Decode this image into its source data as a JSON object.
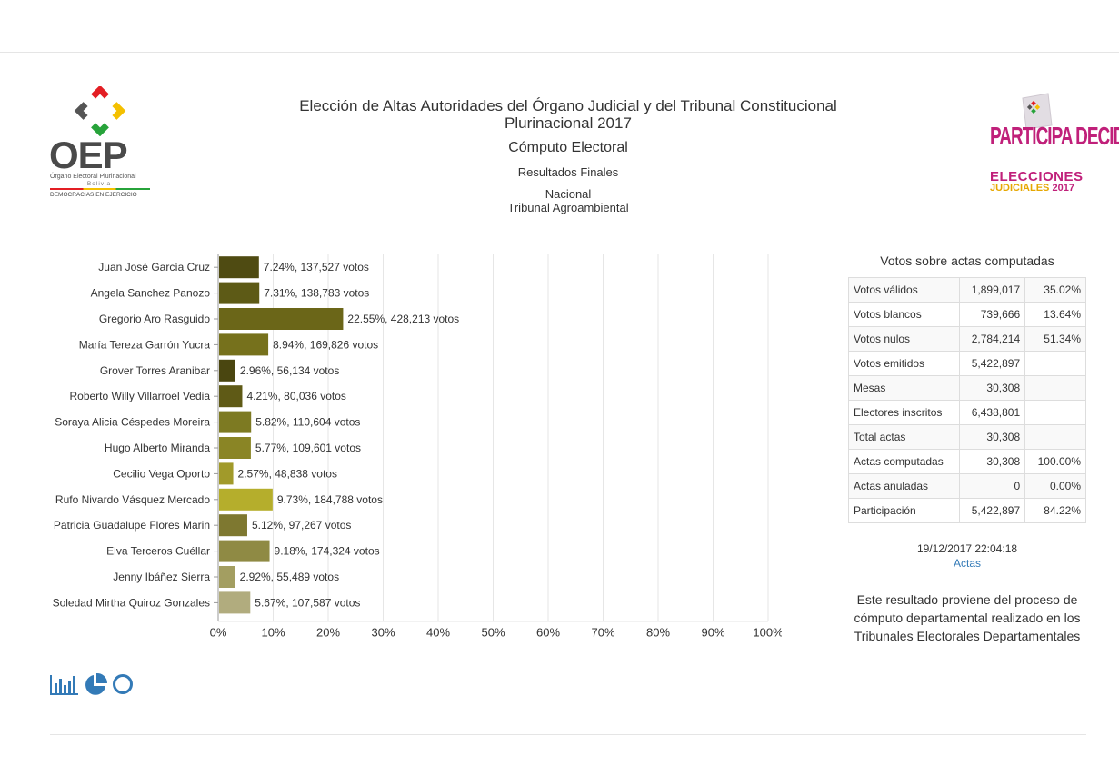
{
  "header": {
    "title": "Elección de Altas Autoridades del Órgano Judicial y del Tribunal Constitucional Plurinacional 2017",
    "subtitle": "Cómputo Electoral",
    "results": "Resultados Finales",
    "scope_line1": "Nacional",
    "scope_line2": "Tribunal Agroambiental"
  },
  "logo_left": {
    "name": "OEP",
    "subtitle": "Órgano Electoral Plurinacional",
    "country": "Bolivia",
    "slogan": "DEMOCRACIAS EN EJERCICIO"
  },
  "logo_right": {
    "main": "PARTICIPA DECIDE",
    "line1": "ELECCIONES",
    "line2": "JUDICIALES",
    "year": "2017"
  },
  "chart_data": {
    "type": "bar",
    "orientation": "horizontal",
    "categories": [
      "Juan José García Cruz",
      "Angela Sanchez Panozo",
      "Gregorio Aro Rasguido",
      "María Tereza Garrón Yucra",
      "Grover Torres Aranibar",
      "Roberto Willy Villarroel Vedia",
      "Soraya Alicia Céspedes Moreira",
      "Hugo Alberto Miranda",
      "Cecilio Vega Oporto",
      "Rufo Nivardo Vásquez Mercado",
      "Patricia Guadalupe Flores Marin",
      "Elva Terceros Cuéllar",
      "Jenny Ibáñez Sierra",
      "Soledad Mirtha Quiroz Gonzales"
    ],
    "values": [
      7.24,
      7.31,
      22.55,
      8.94,
      2.96,
      4.21,
      5.82,
      5.77,
      2.57,
      9.73,
      5.12,
      9.18,
      2.92,
      5.67
    ],
    "data_labels": [
      "7.24%,  137,527 votos",
      "7.31%,  138,783 votos",
      "22.55%,  428,213 votos",
      "8.94%,  169,826 votos",
      "2.96%,  56,134 votos",
      "4.21%,  80,036 votos",
      "5.82%,  110,604 votos",
      "5.77%,  109,601 votos",
      "2.57%,  48,838 votos",
      "9.73%,  184,788 votos",
      "5.12%,  97,267 votos",
      "9.18%,  174,324 votos",
      "2.92%,  55,489 votos",
      "5.67%,  107,587 votos"
    ],
    "colors": [
      "#4f4b12",
      "#5d5a16",
      "#6b6618",
      "#76711c",
      "#4a4610",
      "#5f5a16",
      "#7d7a22",
      "#8a8525",
      "#a19a2a",
      "#b5ae2c",
      "#7e7830",
      "#8f8a44",
      "#a39e61",
      "#b1ac7e"
    ],
    "xticks": [
      "0%",
      "10%",
      "20%",
      "30%",
      "40%",
      "50%",
      "60%",
      "70%",
      "80%",
      "90%",
      "100%"
    ],
    "xlim": [
      0,
      100
    ],
    "grid": true
  },
  "stats": {
    "title": "Votos sobre actas computadas",
    "rows": [
      {
        "label": "Votos válidos",
        "value": "1,899,017",
        "pct": "35.02%"
      },
      {
        "label": "Votos blancos",
        "value": "739,666",
        "pct": "13.64%"
      },
      {
        "label": "Votos nulos",
        "value": "2,784,214",
        "pct": "51.34%"
      },
      {
        "label": "Votos emitidos",
        "value": "5,422,897",
        "pct": ""
      },
      {
        "label": "Mesas",
        "value": "30,308",
        "pct": ""
      },
      {
        "label": "Electores inscritos",
        "value": "6,438,801",
        "pct": ""
      },
      {
        "label": "Total actas",
        "value": "30,308",
        "pct": ""
      },
      {
        "label": "Actas computadas",
        "value": "30,308",
        "pct": "100.00%"
      },
      {
        "label": "Actas anuladas",
        "value": "0",
        "pct": "0.00%"
      },
      {
        "label": "Participación",
        "value": "5,422,897",
        "pct": "84.22%"
      }
    ]
  },
  "footer": {
    "timestamp": "19/12/2017 22:04:18",
    "actas_link": "Actas",
    "note": "Este resultado proviene del proceso de cómputo departamental realizado en los Tribunales Electorales Departamentales"
  },
  "chart_icons": [
    "bar-chart-icon",
    "pie-chart-icon",
    "donut-chart-icon"
  ],
  "accent_color": "#337ab7"
}
